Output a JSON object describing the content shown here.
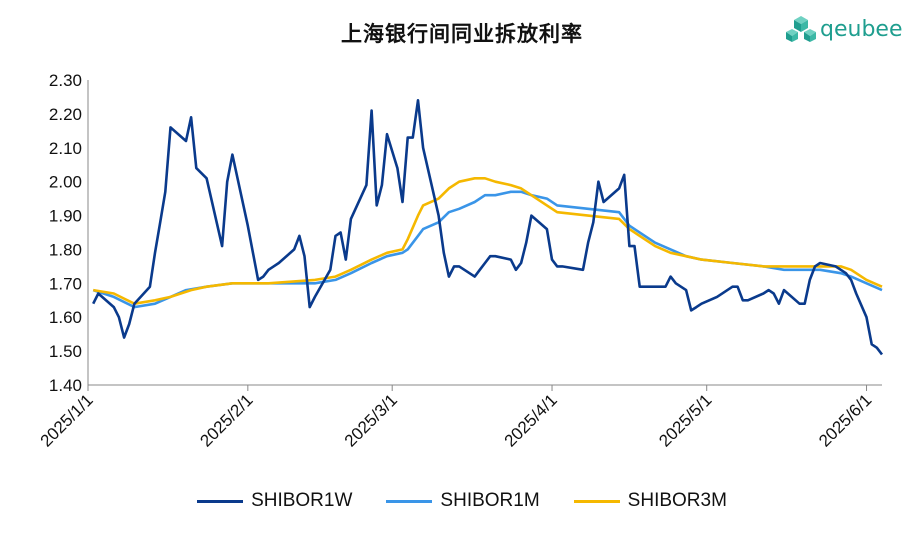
{
  "colors": {
    "SHIBOR1W": "#0a3a8c",
    "SHIBOR1M": "#3a95e8",
    "SHIBOR3M": "#f5b800",
    "logo": "#1f9e8f"
  },
  "logo": {
    "text": "qeubee",
    "icon": "cube-cluster-icon"
  },
  "chart_data": {
    "type": "line",
    "title": "上海银行间同业拆放利率",
    "xlabel": "",
    "ylabel": "",
    "ylim": [
      1.4,
      2.3
    ],
    "yticks": [
      "1.40",
      "1.50",
      "1.60",
      "1.70",
      "1.80",
      "1.90",
      "2.00",
      "2.10",
      "2.20",
      "2.30"
    ],
    "xlim": [
      "2025-01-01",
      "2025-06-04"
    ],
    "xticks": [
      "2025/1/1",
      "2025/2/1",
      "2025/3/1",
      "2025/4/1",
      "2025/5/1",
      "2025/6/1"
    ],
    "xtick_dates": [
      "2025-01-01",
      "2025-02-01",
      "2025-03-01",
      "2025-04-01",
      "2025-05-01",
      "2025-06-01"
    ],
    "grid": false,
    "legend": "bottom",
    "series": [
      {
        "name": "SHIBOR1W",
        "points": [
          [
            "2025-01-02",
            1.64
          ],
          [
            "2025-01-03",
            1.67
          ],
          [
            "2025-01-06",
            1.63
          ],
          [
            "2025-01-07",
            1.6
          ],
          [
            "2025-01-08",
            1.54
          ],
          [
            "2025-01-09",
            1.58
          ],
          [
            "2025-01-10",
            1.64
          ],
          [
            "2025-01-13",
            1.69
          ],
          [
            "2025-01-14",
            1.79
          ],
          [
            "2025-01-15",
            1.88
          ],
          [
            "2025-01-16",
            1.97
          ],
          [
            "2025-01-17",
            2.16
          ],
          [
            "2025-01-20",
            2.12
          ],
          [
            "2025-01-21",
            2.19
          ],
          [
            "2025-01-22",
            2.04
          ],
          [
            "2025-01-24",
            2.01
          ],
          [
            "2025-01-27",
            1.81
          ],
          [
            "2025-01-28",
            2.0
          ],
          [
            "2025-01-29",
            2.08
          ],
          [
            "2025-02-01",
            1.87
          ],
          [
            "2025-02-03",
            1.71
          ],
          [
            "2025-02-04",
            1.72
          ],
          [
            "2025-02-05",
            1.74
          ],
          [
            "2025-02-06",
            1.75
          ],
          [
            "2025-02-07",
            1.76
          ],
          [
            "2025-02-10",
            1.8
          ],
          [
            "2025-02-11",
            1.84
          ],
          [
            "2025-02-12",
            1.78
          ],
          [
            "2025-02-13",
            1.63
          ],
          [
            "2025-02-14",
            1.66
          ],
          [
            "2025-02-17",
            1.74
          ],
          [
            "2025-02-18",
            1.84
          ],
          [
            "2025-02-19",
            1.85
          ],
          [
            "2025-02-20",
            1.77
          ],
          [
            "2025-02-21",
            1.89
          ],
          [
            "2025-02-24",
            1.99
          ],
          [
            "2025-02-25",
            2.21
          ],
          [
            "2025-02-26",
            1.93
          ],
          [
            "2025-02-27",
            1.99
          ],
          [
            "2025-02-28",
            2.14
          ],
          [
            "2025-03-02",
            2.04
          ],
          [
            "2025-03-03",
            1.94
          ],
          [
            "2025-03-04",
            2.13
          ],
          [
            "2025-03-05",
            2.13
          ],
          [
            "2025-03-06",
            2.24
          ],
          [
            "2025-03-07",
            2.1
          ],
          [
            "2025-03-10",
            1.9
          ],
          [
            "2025-03-11",
            1.79
          ],
          [
            "2025-03-12",
            1.72
          ],
          [
            "2025-03-13",
            1.75
          ],
          [
            "2025-03-14",
            1.75
          ],
          [
            "2025-03-17",
            1.72
          ],
          [
            "2025-03-18",
            1.74
          ],
          [
            "2025-03-19",
            1.76
          ],
          [
            "2025-03-20",
            1.78
          ],
          [
            "2025-03-21",
            1.78
          ],
          [
            "2025-03-24",
            1.77
          ],
          [
            "2025-03-25",
            1.74
          ],
          [
            "2025-03-26",
            1.76
          ],
          [
            "2025-03-27",
            1.82
          ],
          [
            "2025-03-28",
            1.9
          ],
          [
            "2025-03-31",
            1.86
          ],
          [
            "2025-04-01",
            1.77
          ],
          [
            "2025-04-02",
            1.75
          ],
          [
            "2025-04-03",
            1.75
          ],
          [
            "2025-04-07",
            1.74
          ],
          [
            "2025-04-08",
            1.82
          ],
          [
            "2025-04-09",
            1.88
          ],
          [
            "2025-04-10",
            2.0
          ],
          [
            "2025-04-11",
            1.94
          ],
          [
            "2025-04-14",
            1.98
          ],
          [
            "2025-04-15",
            2.02
          ],
          [
            "2025-04-16",
            1.81
          ],
          [
            "2025-04-17",
            1.81
          ],
          [
            "2025-04-18",
            1.69
          ],
          [
            "2025-04-21",
            1.69
          ],
          [
            "2025-04-22",
            1.69
          ],
          [
            "2025-04-23",
            1.69
          ],
          [
            "2025-04-24",
            1.72
          ],
          [
            "2025-04-25",
            1.7
          ],
          [
            "2025-04-27",
            1.68
          ],
          [
            "2025-04-28",
            1.62
          ],
          [
            "2025-04-29",
            1.63
          ],
          [
            "2025-04-30",
            1.64
          ],
          [
            "2025-05-03",
            1.66
          ],
          [
            "2025-05-06",
            1.69
          ],
          [
            "2025-05-07",
            1.69
          ],
          [
            "2025-05-08",
            1.65
          ],
          [
            "2025-05-09",
            1.65
          ],
          [
            "2025-05-12",
            1.67
          ],
          [
            "2025-05-13",
            1.68
          ],
          [
            "2025-05-14",
            1.67
          ],
          [
            "2025-05-15",
            1.64
          ],
          [
            "2025-05-16",
            1.68
          ],
          [
            "2025-05-19",
            1.64
          ],
          [
            "2025-05-20",
            1.64
          ],
          [
            "2025-05-21",
            1.71
          ],
          [
            "2025-05-22",
            1.75
          ],
          [
            "2025-05-23",
            1.76
          ],
          [
            "2025-05-26",
            1.75
          ],
          [
            "2025-05-27",
            1.74
          ],
          [
            "2025-05-28",
            1.73
          ],
          [
            "2025-05-29",
            1.71
          ],
          [
            "2025-05-30",
            1.67
          ],
          [
            "2025-06-01",
            1.6
          ],
          [
            "2025-06-02",
            1.52
          ],
          [
            "2025-06-03",
            1.51
          ],
          [
            "2025-06-04",
            1.49
          ]
        ]
      },
      {
        "name": "SHIBOR1M",
        "points": [
          [
            "2025-01-02",
            1.68
          ],
          [
            "2025-01-06",
            1.66
          ],
          [
            "2025-01-10",
            1.63
          ],
          [
            "2025-01-14",
            1.64
          ],
          [
            "2025-01-17",
            1.66
          ],
          [
            "2025-01-20",
            1.68
          ],
          [
            "2025-01-24",
            1.69
          ],
          [
            "2025-01-29",
            1.7
          ],
          [
            "2025-02-05",
            1.7
          ],
          [
            "2025-02-14",
            1.7
          ],
          [
            "2025-02-18",
            1.71
          ],
          [
            "2025-02-21",
            1.73
          ],
          [
            "2025-02-25",
            1.76
          ],
          [
            "2025-02-28",
            1.78
          ],
          [
            "2025-03-03",
            1.79
          ],
          [
            "2025-03-04",
            1.8
          ],
          [
            "2025-03-06",
            1.84
          ],
          [
            "2025-03-07",
            1.86
          ],
          [
            "2025-03-10",
            1.88
          ],
          [
            "2025-03-12",
            1.91
          ],
          [
            "2025-03-14",
            1.92
          ],
          [
            "2025-03-17",
            1.94
          ],
          [
            "2025-03-19",
            1.96
          ],
          [
            "2025-03-21",
            1.96
          ],
          [
            "2025-03-24",
            1.97
          ],
          [
            "2025-03-26",
            1.97
          ],
          [
            "2025-03-28",
            1.96
          ],
          [
            "2025-03-31",
            1.95
          ],
          [
            "2025-04-02",
            1.93
          ],
          [
            "2025-04-08",
            1.92
          ],
          [
            "2025-04-14",
            1.91
          ],
          [
            "2025-04-16",
            1.87
          ],
          [
            "2025-04-21",
            1.82
          ],
          [
            "2025-04-24",
            1.8
          ],
          [
            "2025-04-27",
            1.78
          ],
          [
            "2025-04-30",
            1.77
          ],
          [
            "2025-05-06",
            1.76
          ],
          [
            "2025-05-12",
            1.75
          ],
          [
            "2025-05-16",
            1.74
          ],
          [
            "2025-05-20",
            1.74
          ],
          [
            "2025-05-23",
            1.74
          ],
          [
            "2025-05-27",
            1.73
          ],
          [
            "2025-05-29",
            1.72
          ],
          [
            "2025-06-01",
            1.7
          ],
          [
            "2025-06-04",
            1.68
          ]
        ]
      },
      {
        "name": "SHIBOR3M",
        "points": [
          [
            "2025-01-02",
            1.68
          ],
          [
            "2025-01-06",
            1.67
          ],
          [
            "2025-01-10",
            1.64
          ],
          [
            "2025-01-14",
            1.65
          ],
          [
            "2025-01-17",
            1.66
          ],
          [
            "2025-01-21",
            1.68
          ],
          [
            "2025-01-24",
            1.69
          ],
          [
            "2025-01-29",
            1.7
          ],
          [
            "2025-02-05",
            1.7
          ],
          [
            "2025-02-14",
            1.71
          ],
          [
            "2025-02-18",
            1.72
          ],
          [
            "2025-02-21",
            1.74
          ],
          [
            "2025-02-25",
            1.77
          ],
          [
            "2025-02-28",
            1.79
          ],
          [
            "2025-03-03",
            1.8
          ],
          [
            "2025-03-04",
            1.83
          ],
          [
            "2025-03-06",
            1.9
          ],
          [
            "2025-03-07",
            1.93
          ],
          [
            "2025-03-10",
            1.95
          ],
          [
            "2025-03-12",
            1.98
          ],
          [
            "2025-03-14",
            2.0
          ],
          [
            "2025-03-17",
            2.01
          ],
          [
            "2025-03-19",
            2.01
          ],
          [
            "2025-03-21",
            2.0
          ],
          [
            "2025-03-24",
            1.99
          ],
          [
            "2025-03-26",
            1.98
          ],
          [
            "2025-03-28",
            1.96
          ],
          [
            "2025-03-31",
            1.93
          ],
          [
            "2025-04-02",
            1.91
          ],
          [
            "2025-04-08",
            1.9
          ],
          [
            "2025-04-14",
            1.89
          ],
          [
            "2025-04-16",
            1.86
          ],
          [
            "2025-04-21",
            1.81
          ],
          [
            "2025-04-24",
            1.79
          ],
          [
            "2025-04-27",
            1.78
          ],
          [
            "2025-04-30",
            1.77
          ],
          [
            "2025-05-06",
            1.76
          ],
          [
            "2025-05-12",
            1.75
          ],
          [
            "2025-05-16",
            1.75
          ],
          [
            "2025-05-20",
            1.75
          ],
          [
            "2025-05-23",
            1.75
          ],
          [
            "2025-05-27",
            1.75
          ],
          [
            "2025-05-29",
            1.74
          ],
          [
            "2025-06-01",
            1.71
          ],
          [
            "2025-06-04",
            1.69
          ]
        ]
      }
    ]
  }
}
